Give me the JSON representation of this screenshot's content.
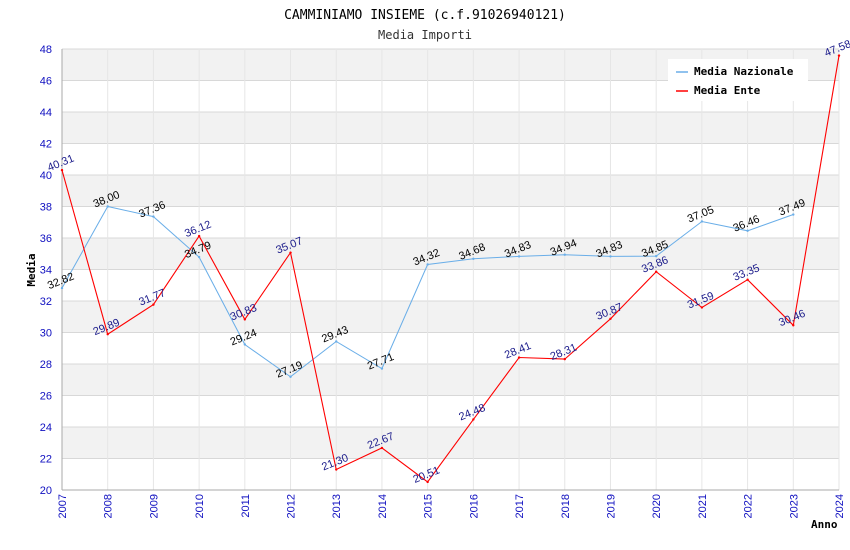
{
  "chart_data": {
    "type": "line",
    "title": "CAMMINIAMO INSIEME (c.f.91026940121)",
    "subtitle": "Media Importi",
    "xlabel": "Anno",
    "ylabel": "Media",
    "ylim": [
      20,
      48
    ],
    "y_ticks": [
      20,
      22,
      24,
      26,
      28,
      30,
      32,
      34,
      36,
      38,
      40,
      42,
      44,
      46,
      48
    ],
    "x": [
      "2007",
      "2008",
      "2009",
      "2010",
      "2011",
      "2012",
      "2013",
      "2014",
      "2015",
      "2016",
      "2017",
      "2018",
      "2019",
      "2020",
      "2021",
      "2022",
      "2023",
      "2024"
    ],
    "grid": true,
    "legend_position": "top-right",
    "series": [
      {
        "name": "Media Nazionale",
        "color": "#6aaee8",
        "values": [
          32.82,
          38.0,
          37.36,
          34.79,
          29.24,
          27.19,
          29.43,
          27.71,
          34.32,
          34.68,
          34.83,
          34.94,
          34.83,
          34.85,
          37.05,
          36.46,
          37.49,
          null
        ],
        "labels": [
          "32.82",
          "38.00",
          "37.36",
          "34.79",
          "29.24",
          "27.19",
          "29.43",
          "27.71",
          "34.32",
          "34.68",
          "34.83",
          "34.94",
          "34.83",
          "34.85",
          "37.05",
          "36.46",
          "37.49",
          ""
        ]
      },
      {
        "name": "Media Ente",
        "color": "#ff0000",
        "values": [
          40.31,
          29.89,
          31.77,
          36.12,
          30.83,
          35.07,
          21.3,
          22.67,
          20.51,
          24.48,
          28.41,
          28.31,
          30.87,
          33.86,
          31.59,
          33.35,
          30.46,
          47.58
        ],
        "labels": [
          "40.31",
          "29.89",
          "31.77",
          "36.12",
          "30.83",
          "35.07",
          "21.30",
          "22.67",
          "20.51",
          "24.48",
          "28.41",
          "28.31",
          "30.87",
          "33.86",
          "31.59",
          "33.35",
          "30.46",
          "47.58"
        ]
      }
    ]
  }
}
